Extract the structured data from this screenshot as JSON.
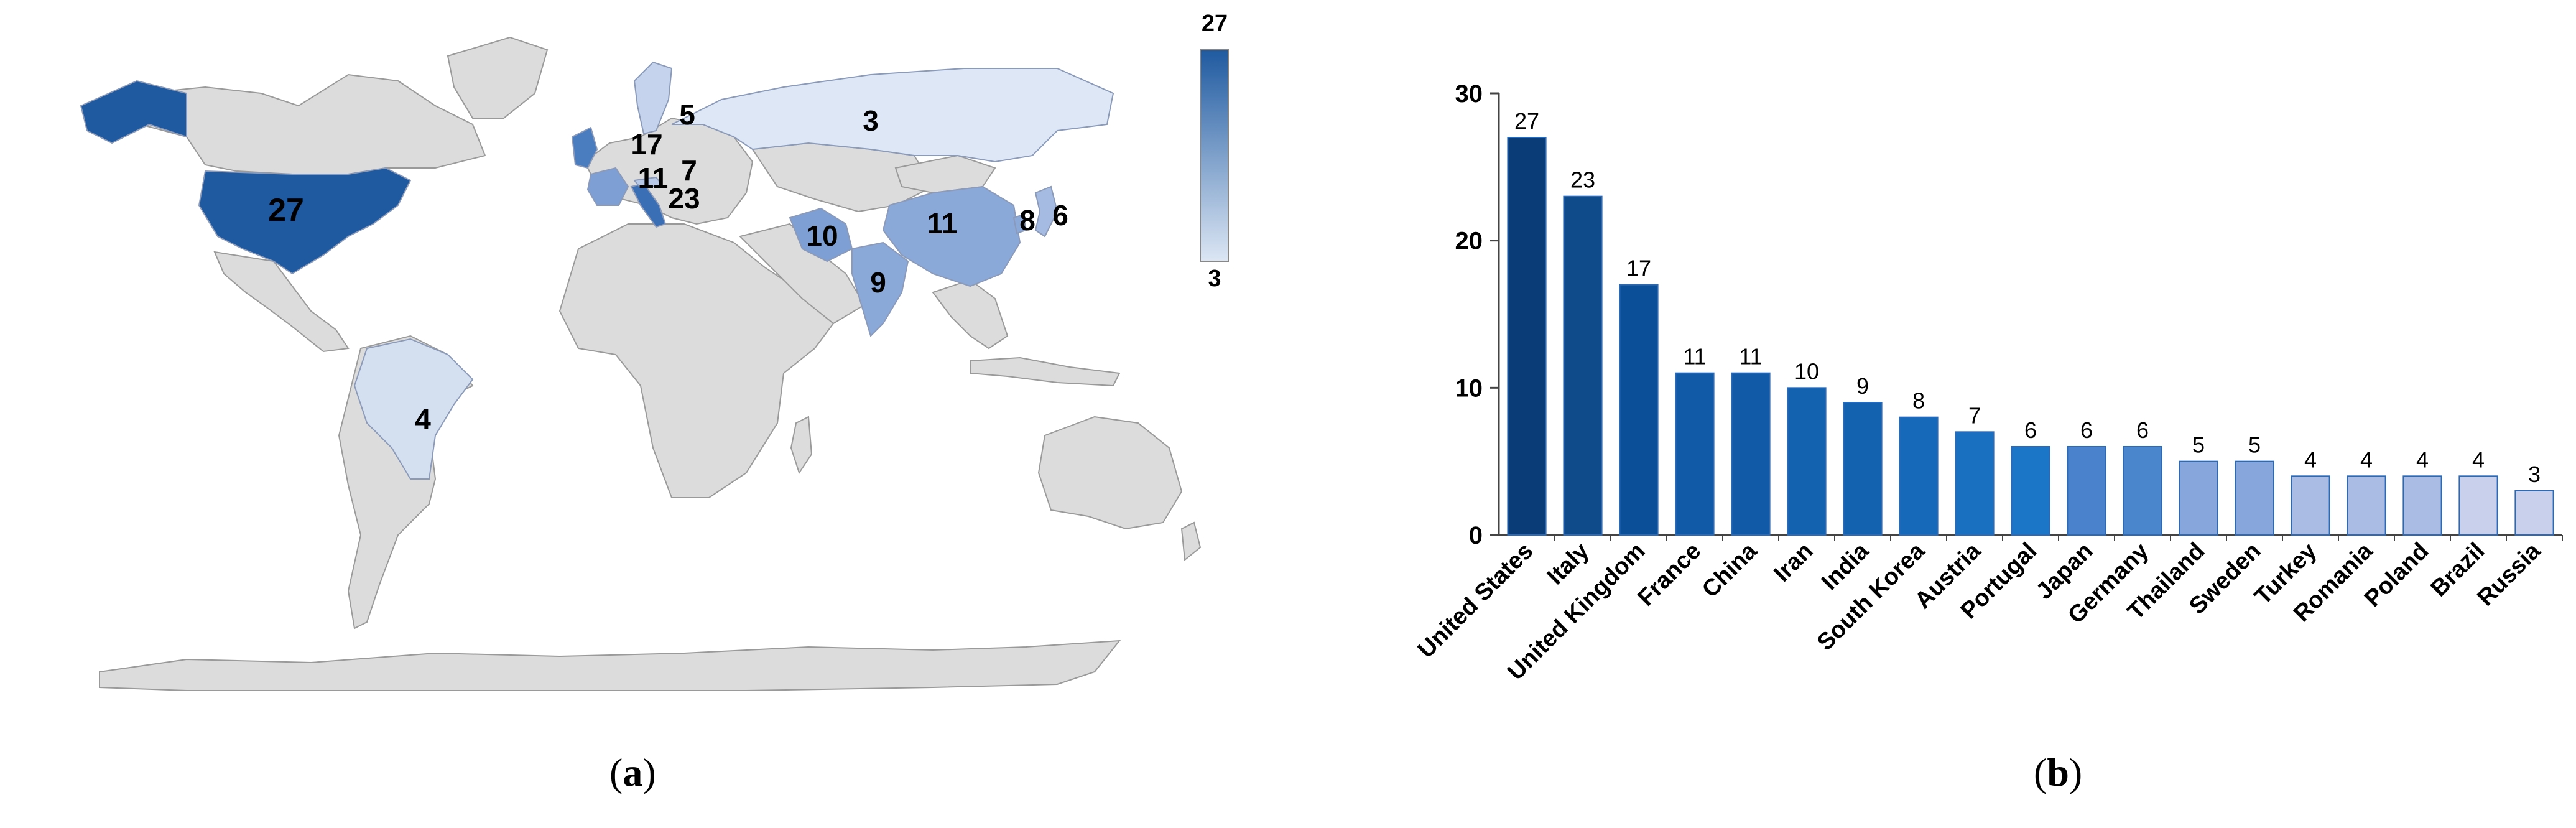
{
  "captions": {
    "a": "a",
    "b": "b"
  },
  "map": {
    "legend": {
      "max": "27",
      "min": "3",
      "color_max": "#1f5aa0",
      "color_min": "#dce6f4"
    },
    "land_color": "#dcdcdc",
    "labels": [
      {
        "country": "United States",
        "text": "27"
      },
      {
        "country": "Brazil",
        "text": "4"
      },
      {
        "country": "Russia",
        "text": "3"
      },
      {
        "country": "Sweden",
        "text": "5"
      },
      {
        "country": "United Kingdom",
        "text": "17"
      },
      {
        "country": "France",
        "text": "11"
      },
      {
        "country": "Austria",
        "text": "7"
      },
      {
        "country": "Italy",
        "text": "23"
      },
      {
        "country": "Iran",
        "text": "10"
      },
      {
        "country": "China",
        "text": "11"
      },
      {
        "country": "India",
        "text": "9"
      },
      {
        "country": "South Korea",
        "text": "8"
      },
      {
        "country": "Japan",
        "text": "6"
      }
    ]
  },
  "chart_data": {
    "type": "bar",
    "title": "",
    "xlabel": "",
    "ylabel": "",
    "ylim": [
      0,
      30
    ],
    "yticks": [
      0,
      10,
      20,
      30
    ],
    "grid": false,
    "categories": [
      "United States",
      "Italy",
      "United Kingdom",
      "France",
      "China",
      "Iran",
      "India",
      "South Korea",
      "Austria",
      "Portugal",
      "Japan",
      "Germany",
      "Thailand",
      "Sweden",
      "Turkey",
      "Romania",
      "Poland",
      "Brazil",
      "Russia"
    ],
    "values": [
      27,
      23,
      17,
      11,
      11,
      10,
      9,
      8,
      7,
      6,
      6,
      6,
      5,
      5,
      4,
      4,
      4,
      4,
      3
    ],
    "colors": [
      "#0a3c78",
      "#0f4a8a",
      "#0b4f98",
      "#105aa8",
      "#105aa8",
      "#1262b0",
      "#1262b0",
      "#1668b8",
      "#1a70c0",
      "#1c76c8",
      "#4a82cc",
      "#4a86cc",
      "#86a6dc",
      "#86a6dc",
      "#aabce4",
      "#aabce4",
      "#aabce4",
      "#c8d0ec",
      "#c8d0ec"
    ]
  }
}
